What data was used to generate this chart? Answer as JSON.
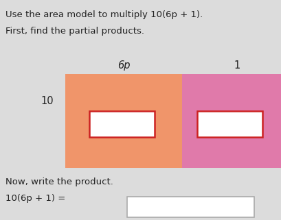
{
  "title_line1": "Use the area model to multiply 10(6p + 1).",
  "title_line2": "First, find the partial products.",
  "label_6p": "6p",
  "label_1": "1",
  "label_10": "10",
  "bottom_text": "Now, write the product.",
  "bottom_eq": "10(6p + 1) =",
  "bg_color": "#dcdcdc",
  "rect1_color": "#f0956a",
  "rect2_color": "#e07aaa",
  "inner_box_color": "#ffffff",
  "inner_box_border": "#cc2222",
  "answer_box_color": "#ffffff",
  "answer_box_border": "#aaaaaa",
  "text_color": "#222222"
}
